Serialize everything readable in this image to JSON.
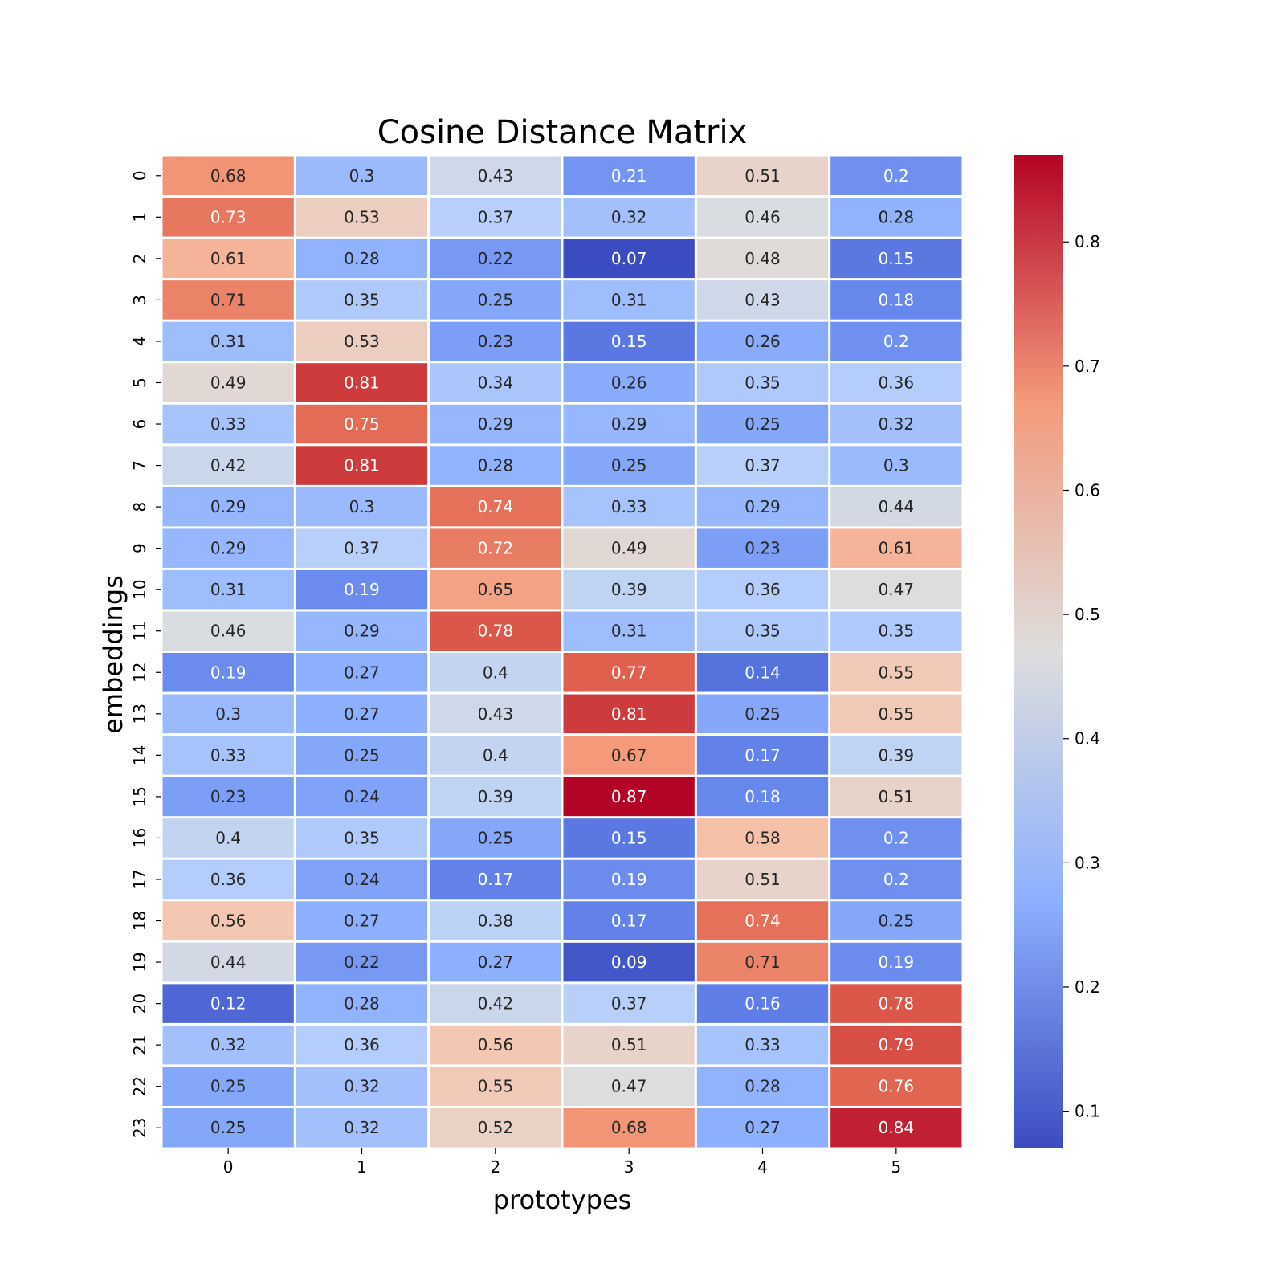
{
  "chart_data": {
    "type": "heatmap",
    "title": "Cosine Distance Matrix",
    "xlabel": "prototypes",
    "ylabel": "embeddings",
    "x_categories": [
      "0",
      "1",
      "2",
      "3",
      "4",
      "5"
    ],
    "y_categories": [
      "0",
      "1",
      "2",
      "3",
      "4",
      "5",
      "6",
      "7",
      "8",
      "9",
      "10",
      "11",
      "12",
      "13",
      "14",
      "15",
      "16",
      "17",
      "18",
      "19",
      "20",
      "21",
      "22",
      "23"
    ],
    "values": [
      [
        0.68,
        0.3,
        0.43,
        0.21,
        0.51,
        0.2
      ],
      [
        0.73,
        0.53,
        0.37,
        0.32,
        0.46,
        0.28
      ],
      [
        0.61,
        0.28,
        0.22,
        0.07,
        0.48,
        0.15
      ],
      [
        0.71,
        0.35,
        0.25,
        0.31,
        0.43,
        0.18
      ],
      [
        0.31,
        0.53,
        0.23,
        0.15,
        0.26,
        0.2
      ],
      [
        0.49,
        0.81,
        0.34,
        0.26,
        0.35,
        0.36
      ],
      [
        0.33,
        0.75,
        0.29,
        0.29,
        0.25,
        0.32
      ],
      [
        0.42,
        0.81,
        0.28,
        0.25,
        0.37,
        0.3
      ],
      [
        0.29,
        0.3,
        0.74,
        0.33,
        0.29,
        0.44
      ],
      [
        0.29,
        0.37,
        0.72,
        0.49,
        0.23,
        0.61
      ],
      [
        0.31,
        0.19,
        0.65,
        0.39,
        0.36,
        0.47
      ],
      [
        0.46,
        0.29,
        0.78,
        0.31,
        0.35,
        0.35
      ],
      [
        0.19,
        0.27,
        0.4,
        0.77,
        0.14,
        0.55
      ],
      [
        0.3,
        0.27,
        0.43,
        0.81,
        0.25,
        0.55
      ],
      [
        0.33,
        0.25,
        0.4,
        0.67,
        0.17,
        0.39
      ],
      [
        0.23,
        0.24,
        0.39,
        0.87,
        0.18,
        0.51
      ],
      [
        0.4,
        0.35,
        0.25,
        0.15,
        0.58,
        0.2
      ],
      [
        0.36,
        0.24,
        0.17,
        0.19,
        0.51,
        0.2
      ],
      [
        0.56,
        0.27,
        0.38,
        0.17,
        0.74,
        0.25
      ],
      [
        0.44,
        0.22,
        0.27,
        0.09,
        0.71,
        0.19
      ],
      [
        0.12,
        0.28,
        0.42,
        0.37,
        0.16,
        0.78
      ],
      [
        0.32,
        0.36,
        0.56,
        0.51,
        0.33,
        0.79
      ],
      [
        0.25,
        0.32,
        0.55,
        0.47,
        0.28,
        0.76
      ],
      [
        0.25,
        0.32,
        0.52,
        0.68,
        0.27,
        0.84
      ]
    ],
    "colormap": "coolwarm",
    "vmin": 0.07,
    "vmax": 0.87,
    "colorbar_ticks": [
      "0.1",
      "0.2",
      "0.3",
      "0.4",
      "0.5",
      "0.6",
      "0.7",
      "0.8"
    ],
    "annotations": true,
    "cell_border_color": "#ffffff"
  }
}
